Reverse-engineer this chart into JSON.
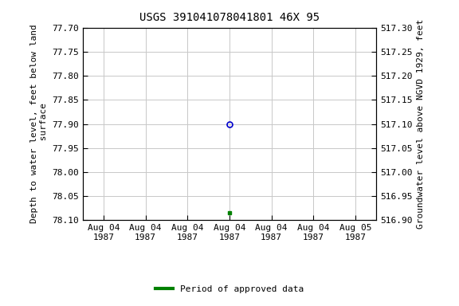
{
  "title": "USGS 391041078041801 46X 95",
  "ylabel_left": "Depth to water level, feet below land\n surface",
  "ylabel_right": "Groundwater level above NGVD 1929, feet",
  "ylim_left_top": 77.7,
  "ylim_left_bottom": 78.1,
  "ylim_right_top": 517.3,
  "ylim_right_bottom": 516.9,
  "yticks_left": [
    77.7,
    77.75,
    77.8,
    77.85,
    77.9,
    77.95,
    78.0,
    78.05,
    78.1
  ],
  "yticks_right": [
    517.3,
    517.25,
    517.2,
    517.15,
    517.1,
    517.05,
    517.0,
    516.95,
    516.9
  ],
  "ytick_labels_left": [
    "77.70",
    "77.75",
    "77.80",
    "77.85",
    "77.90",
    "77.95",
    "78.00",
    "78.05",
    "78.10"
  ],
  "ytick_labels_right": [
    "517.30",
    "517.25",
    "517.20",
    "517.15",
    "517.10",
    "517.05",
    "517.00",
    "516.95",
    "516.90"
  ],
  "point_blue_x": 3.5,
  "point_blue_y": 77.9,
  "point_green_x": 3.5,
  "point_green_y": 78.085,
  "xlim": [
    0,
    7
  ],
  "xtick_positions": [
    0.5,
    1.5,
    2.5,
    3.5,
    4.5,
    5.5,
    6.5
  ],
  "xtick_labels": [
    "Aug 04\n1987",
    "Aug 04\n1987",
    "Aug 04\n1987",
    "Aug 04\n1987",
    "Aug 04\n1987",
    "Aug 04\n1987",
    "Aug 05\n1987"
  ],
  "legend_label": "Period of approved data",
  "grid_color": "#c8c8c8",
  "background_color": "#ffffff",
  "point_blue_color": "#0000cc",
  "point_green_color": "#008000",
  "title_fontsize": 10,
  "axis_label_fontsize": 8,
  "tick_fontsize": 8
}
